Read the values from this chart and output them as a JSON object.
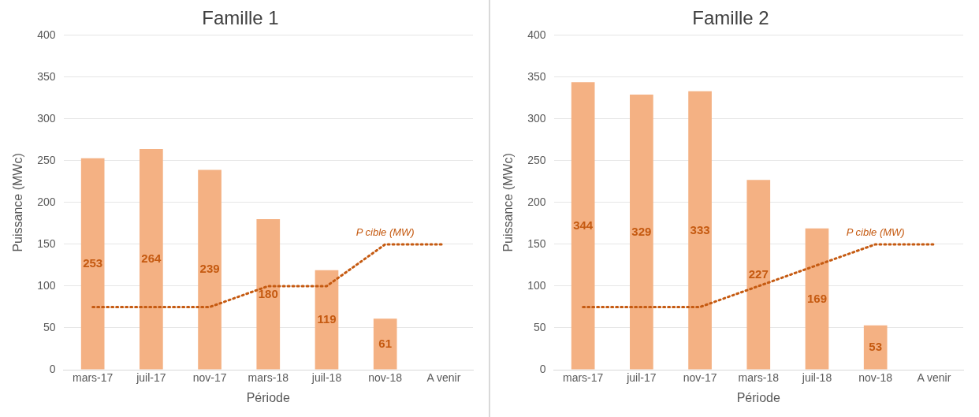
{
  "chart_data": [
    {
      "type": "bar",
      "title": "Famille 1",
      "xlabel": "Période",
      "ylabel": "Puissance (MWc)",
      "categories": [
        "mars-17",
        "juil-17",
        "nov-17",
        "mars-18",
        "juil-18",
        "nov-18",
        "A venir"
      ],
      "ylim": [
        0,
        400
      ],
      "yticks": [
        0,
        50,
        100,
        150,
        200,
        250,
        300,
        350,
        400
      ],
      "grid": "y",
      "legend": false,
      "series": [
        {
          "color": "#f4b183",
          "values": [
            253,
            264,
            239,
            180,
            119,
            61,
            null
          ],
          "value_labels": [
            "253",
            "264",
            "239",
            "180",
            "119",
            "61",
            null
          ]
        },
        {
          "type": "line",
          "name": "P cible (MW)",
          "color": "#c55a11",
          "line_style": "dotted",
          "marker": "none",
          "values": [
            75,
            75,
            75,
            100,
            100,
            150,
            150
          ]
        }
      ]
    },
    {
      "type": "bar",
      "title": "Famille 2",
      "xlabel": "Période",
      "ylabel": "Puissance (MWc)",
      "categories": [
        "mars-17",
        "juil-17",
        "nov-17",
        "mars-18",
        "juil-18",
        "nov-18",
        "A venir"
      ],
      "ylim": [
        0,
        400
      ],
      "yticks": [
        0,
        50,
        100,
        150,
        200,
        250,
        300,
        350,
        400
      ],
      "grid": "y",
      "legend": false,
      "series": [
        {
          "color": "#f4b183",
          "values": [
            344,
            329,
            333,
            227,
            169,
            53,
            null
          ],
          "value_labels": [
            "344",
            "329",
            "333",
            "227",
            "169",
            "53",
            null
          ]
        },
        {
          "type": "line",
          "name": "P cible (MW)",
          "color": "#c55a11",
          "line_style": "dotted",
          "marker": "none",
          "values": [
            75,
            75,
            75,
            100,
            125,
            150,
            150
          ]
        }
      ]
    }
  ]
}
